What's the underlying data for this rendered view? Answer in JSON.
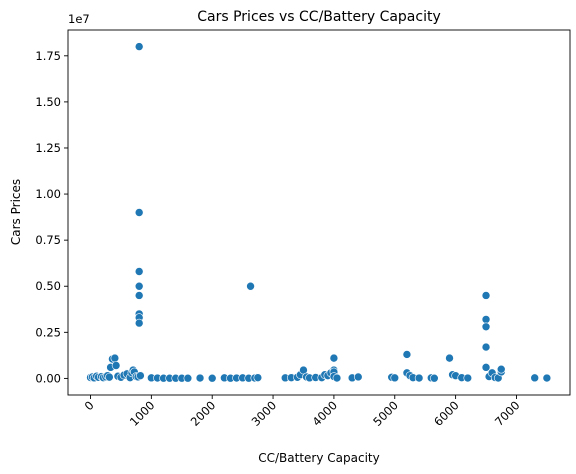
{
  "chart_data": {
    "type": "scatter",
    "title": "Cars Prices vs CC/Battery Capacity",
    "xlabel": "CC/Battery Capacity",
    "ylabel": "Cars Prices",
    "y_multiplier": "1e7",
    "xlim": [
      -370,
      7880
    ],
    "ylim": [
      -900000,
      18900000
    ],
    "x_ticks": [
      0,
      1000,
      2000,
      3000,
      4000,
      5000,
      6000,
      7000
    ],
    "x_tick_labels": [
      "0",
      "1000",
      "2000",
      "3000",
      "4000",
      "5000",
      "6000",
      "7000"
    ],
    "y_ticks": [
      0,
      2500000,
      5000000,
      7500000,
      10000000,
      12500000,
      15000000,
      17500000
    ],
    "y_tick_labels": [
      "0.00",
      "0.25",
      "0.50",
      "0.75",
      "1.00",
      "1.25",
      "1.50",
      "1.75"
    ],
    "grid": false,
    "marker_color": "#1f77b4",
    "points": [
      {
        "x": 0,
        "y": 50000
      },
      {
        "x": 30,
        "y": 80000
      },
      {
        "x": 60,
        "y": 30000
      },
      {
        "x": 100,
        "y": 120000
      },
      {
        "x": 130,
        "y": 60000
      },
      {
        "x": 180,
        "y": 100000
      },
      {
        "x": 210,
        "y": 40000
      },
      {
        "x": 250,
        "y": 90000
      },
      {
        "x": 280,
        "y": 150000
      },
      {
        "x": 310,
        "y": 70000
      },
      {
        "x": 330,
        "y": 600000
      },
      {
        "x": 360,
        "y": 1050000
      },
      {
        "x": 400,
        "y": 1100000
      },
      {
        "x": 420,
        "y": 700000
      },
      {
        "x": 450,
        "y": 120000
      },
      {
        "x": 500,
        "y": 60000
      },
      {
        "x": 550,
        "y": 180000
      },
      {
        "x": 600,
        "y": 250000
      },
      {
        "x": 650,
        "y": 40000
      },
      {
        "x": 680,
        "y": 300000
      },
      {
        "x": 700,
        "y": 450000
      },
      {
        "x": 720,
        "y": 350000
      },
      {
        "x": 750,
        "y": 100000
      },
      {
        "x": 780,
        "y": 80000
      },
      {
        "x": 800,
        "y": 18000000
      },
      {
        "x": 800,
        "y": 9000000
      },
      {
        "x": 800,
        "y": 5800000
      },
      {
        "x": 800,
        "y": 5000000
      },
      {
        "x": 800,
        "y": 4500000
      },
      {
        "x": 800,
        "y": 3500000
      },
      {
        "x": 800,
        "y": 3300000
      },
      {
        "x": 800,
        "y": 3000000
      },
      {
        "x": 820,
        "y": 150000
      },
      {
        "x": 1000,
        "y": 30000
      },
      {
        "x": 1100,
        "y": 20000
      },
      {
        "x": 1200,
        "y": 10000
      },
      {
        "x": 1300,
        "y": 10000
      },
      {
        "x": 1400,
        "y": 10000
      },
      {
        "x": 1500,
        "y": 10000
      },
      {
        "x": 1600,
        "y": 10000
      },
      {
        "x": 1800,
        "y": 20000
      },
      {
        "x": 2000,
        "y": 10000
      },
      {
        "x": 2200,
        "y": 30000
      },
      {
        "x": 2300,
        "y": 10000
      },
      {
        "x": 2400,
        "y": 20000
      },
      {
        "x": 2500,
        "y": 30000
      },
      {
        "x": 2600,
        "y": 10000
      },
      {
        "x": 2630,
        "y": 5000000
      },
      {
        "x": 2700,
        "y": 20000
      },
      {
        "x": 2750,
        "y": 40000
      },
      {
        "x": 3200,
        "y": 30000
      },
      {
        "x": 3300,
        "y": 40000
      },
      {
        "x": 3400,
        "y": 60000
      },
      {
        "x": 3450,
        "y": 200000
      },
      {
        "x": 3500,
        "y": 450000
      },
      {
        "x": 3550,
        "y": 80000
      },
      {
        "x": 3600,
        "y": 30000
      },
      {
        "x": 3700,
        "y": 50000
      },
      {
        "x": 3800,
        "y": 40000
      },
      {
        "x": 3850,
        "y": 200000
      },
      {
        "x": 3900,
        "y": 150000
      },
      {
        "x": 3950,
        "y": 300000
      },
      {
        "x": 4000,
        "y": 1100000
      },
      {
        "x": 4000,
        "y": 450000
      },
      {
        "x": 4000,
        "y": 350000
      },
      {
        "x": 4000,
        "y": 100000
      },
      {
        "x": 4050,
        "y": 20000
      },
      {
        "x": 4300,
        "y": 30000
      },
      {
        "x": 4400,
        "y": 80000
      },
      {
        "x": 4950,
        "y": 60000
      },
      {
        "x": 5000,
        "y": 30000
      },
      {
        "x": 5200,
        "y": 1300000
      },
      {
        "x": 5200,
        "y": 300000
      },
      {
        "x": 5250,
        "y": 150000
      },
      {
        "x": 5300,
        "y": 40000
      },
      {
        "x": 5400,
        "y": 20000
      },
      {
        "x": 5600,
        "y": 30000
      },
      {
        "x": 5650,
        "y": 10000
      },
      {
        "x": 5900,
        "y": 1100000
      },
      {
        "x": 5950,
        "y": 200000
      },
      {
        "x": 6000,
        "y": 150000
      },
      {
        "x": 6100,
        "y": 40000
      },
      {
        "x": 6200,
        "y": 20000
      },
      {
        "x": 6500,
        "y": 4500000
      },
      {
        "x": 6500,
        "y": 3200000
      },
      {
        "x": 6500,
        "y": 2800000
      },
      {
        "x": 6500,
        "y": 1700000
      },
      {
        "x": 6500,
        "y": 600000
      },
      {
        "x": 6550,
        "y": 100000
      },
      {
        "x": 6600,
        "y": 300000
      },
      {
        "x": 6650,
        "y": 50000
      },
      {
        "x": 6700,
        "y": 20000
      },
      {
        "x": 6750,
        "y": 350000
      },
      {
        "x": 6750,
        "y": 500000
      },
      {
        "x": 7300,
        "y": 30000
      },
      {
        "x": 7500,
        "y": 20000
      }
    ]
  }
}
